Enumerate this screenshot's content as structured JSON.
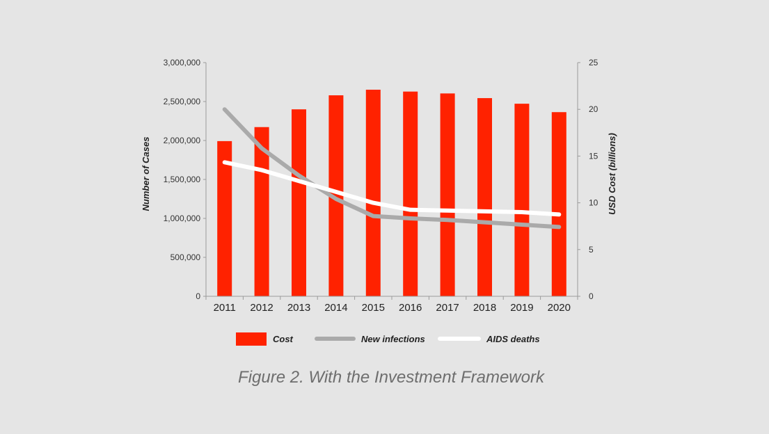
{
  "colors": {
    "background": "#e5e5e5",
    "cost": "#ff2200",
    "new_infections": "#aaaaaa",
    "aids_deaths": "#ffffff",
    "axis": "#9a9a9a"
  },
  "caption": "Figure 2. With the Investment Framework",
  "chart_data": {
    "type": "bar",
    "categories": [
      "2011",
      "2012",
      "2013",
      "2014",
      "2015",
      "2016",
      "2017",
      "2018",
      "2019",
      "2020"
    ],
    "series": [
      {
        "name": "Cost",
        "type": "bar",
        "axis": "right",
        "values": [
          16.6,
          18.1,
          20.0,
          21.5,
          22.1,
          21.9,
          21.7,
          21.2,
          20.6,
          19.7
        ]
      },
      {
        "name": "New infections",
        "type": "line",
        "axis": "left",
        "values": [
          2400000,
          1900000,
          1550000,
          1250000,
          1030000,
          1000000,
          980000,
          950000,
          920000,
          890000
        ]
      },
      {
        "name": "AIDS deaths",
        "type": "line",
        "axis": "left",
        "values": [
          1720000,
          1620000,
          1480000,
          1340000,
          1200000,
          1110000,
          1100000,
          1090000,
          1080000,
          1050000
        ]
      }
    ],
    "left_axis": {
      "label": "Number of Cases",
      "range": [
        0,
        3000000
      ],
      "ticks": [
        "0",
        "500,000",
        "1,000,000",
        "1,500,000",
        "2,000,000",
        "2,500,000",
        "3,000,000"
      ]
    },
    "right_axis": {
      "label": "USD Cost (billions)",
      "range": [
        0,
        25
      ],
      "ticks": [
        "0",
        "5",
        "10",
        "15",
        "20",
        "25"
      ]
    },
    "legend": {
      "placement": "bottom",
      "entries": [
        "Cost",
        "New infections",
        "AIDS deaths"
      ]
    },
    "grid": false
  }
}
